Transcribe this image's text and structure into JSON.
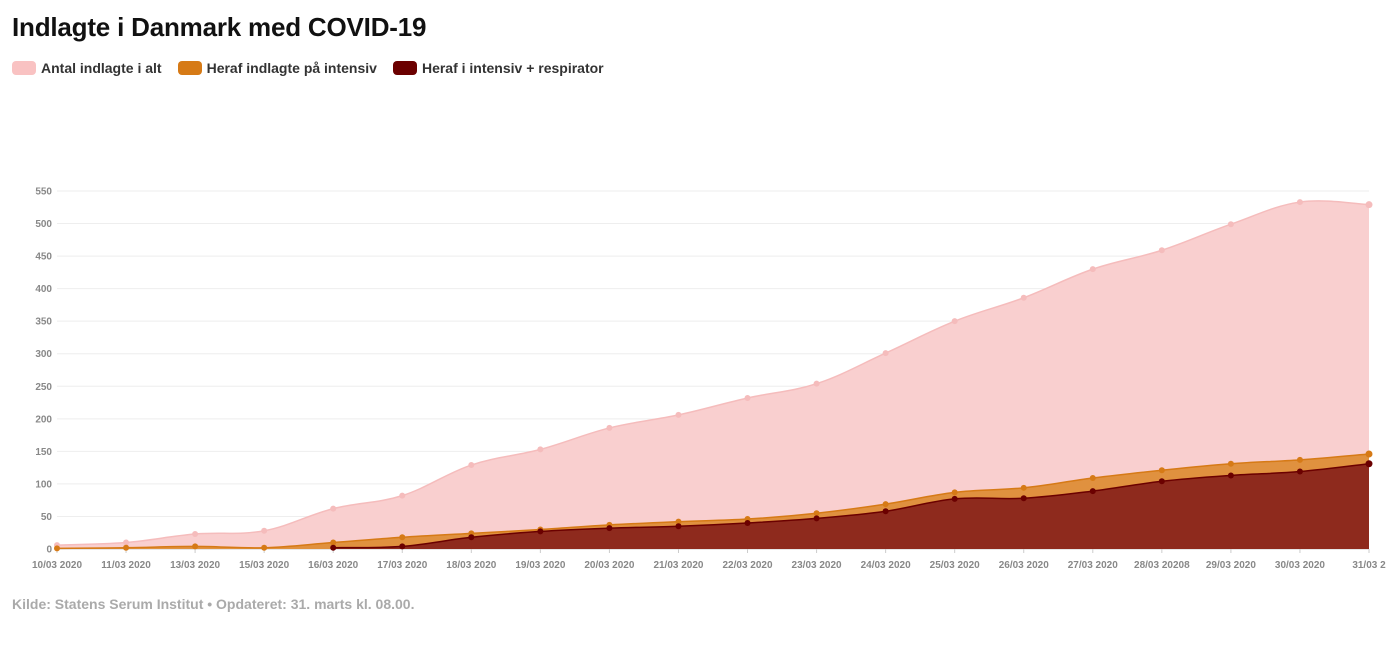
{
  "title": "Indlagte i Danmark med COVID-19",
  "source": "Kilde: Statens Serum Institut • Opdateret: 31. marts kl. 08.00.",
  "colors": {
    "total_fill": "#f9cfcf",
    "total_line": "#f5bcbc",
    "icu_fill": "#e0913f",
    "icu_line": "#d67a16",
    "vent_fill": "#8e2a1d",
    "vent_line": "#6b0000",
    "grid": "#eeeeee"
  },
  "chart_data": {
    "type": "area",
    "categories": [
      "10/03 2020",
      "11/03 2020",
      "13/03 2020",
      "15/03 2020",
      "16/03 2020",
      "17/03 2020",
      "18/03 2020",
      "19/03 2020",
      "20/03 2020",
      "21/03 2020",
      "22/03 2020",
      "23/03 2020",
      "24/03 2020",
      "25/03 2020",
      "26/03 2020",
      "27/03 2020",
      "28/03 20208",
      "29/03 2020",
      "30/03 2020",
      "31/03 2"
    ],
    "series": [
      {
        "name": "Antal indlagte i alt",
        "values": [
          6,
          10,
          23,
          28,
          62,
          82,
          129,
          153,
          186,
          206,
          232,
          254,
          301,
          350,
          386,
          430,
          459,
          499,
          533,
          529
        ]
      },
      {
        "name": "Heraf indlagte på intensiv",
        "values": [
          1,
          2,
          4,
          2,
          10,
          18,
          24,
          30,
          37,
          42,
          46,
          55,
          69,
          87,
          94,
          109,
          121,
          131,
          137,
          146
        ]
      },
      {
        "name": "Heraf i intensiv + respirator",
        "values": [
          null,
          null,
          null,
          null,
          2,
          4,
          18,
          27,
          32,
          35,
          40,
          47,
          58,
          77,
          78,
          89,
          104,
          113,
          119,
          131
        ]
      }
    ],
    "yticks": [
      0,
      50,
      100,
      150,
      200,
      250,
      300,
      350,
      400,
      450,
      500,
      550
    ],
    "ylim": [
      0,
      550
    ],
    "grid": true,
    "legend_position": "top-left"
  }
}
